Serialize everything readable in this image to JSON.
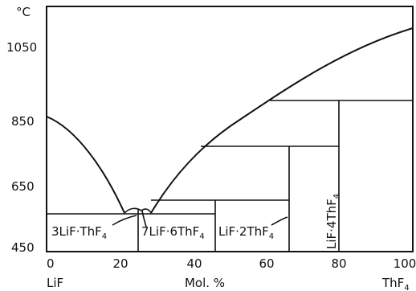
{
  "diagram": {
    "y_unit": "°C",
    "y_ticks": [
      "1050",
      "850",
      "650",
      "450"
    ],
    "x_ticks": [
      "0",
      "20",
      "40",
      "60",
      "80",
      "100"
    ],
    "x_label_left": "LiF",
    "x_label_center": "Mol. %",
    "x_label_right": "ThF",
    "x_label_right_sub": "4",
    "compounds": [
      {
        "main": "3LiF·ThF",
        "sub": "4"
      },
      {
        "main": "7LiF·6ThF",
        "sub": "4"
      },
      {
        "main": "LiF·2ThF",
        "sub": "4"
      },
      {
        "main": "LiF·4ThF",
        "sub": "4"
      }
    ]
  }
}
